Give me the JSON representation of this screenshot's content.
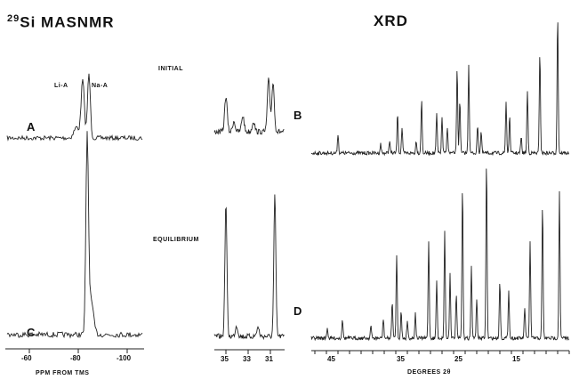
{
  "nmr": {
    "heading_num": "29",
    "heading_rest": "Si MASNMR",
    "peak_label_1": "Li-A",
    "peak_label_2": "Na-A",
    "panel_a": "A",
    "panel_c": "C",
    "ticks": [
      "-60",
      "-80",
      "-100"
    ],
    "axis_unit": "PPM FROM TMS"
  },
  "middle": {
    "label_initial": "INITIAL",
    "label_equilibrium": "EQUILIBRIUM",
    "ticks": [
      "35",
      "33",
      "31"
    ]
  },
  "xrd": {
    "heading": "XRD",
    "panel_b": "B",
    "panel_d": "D",
    "ticks": [
      "45",
      "35",
      "25",
      "15"
    ],
    "axis_label": "DEGREES  2θ"
  }
}
